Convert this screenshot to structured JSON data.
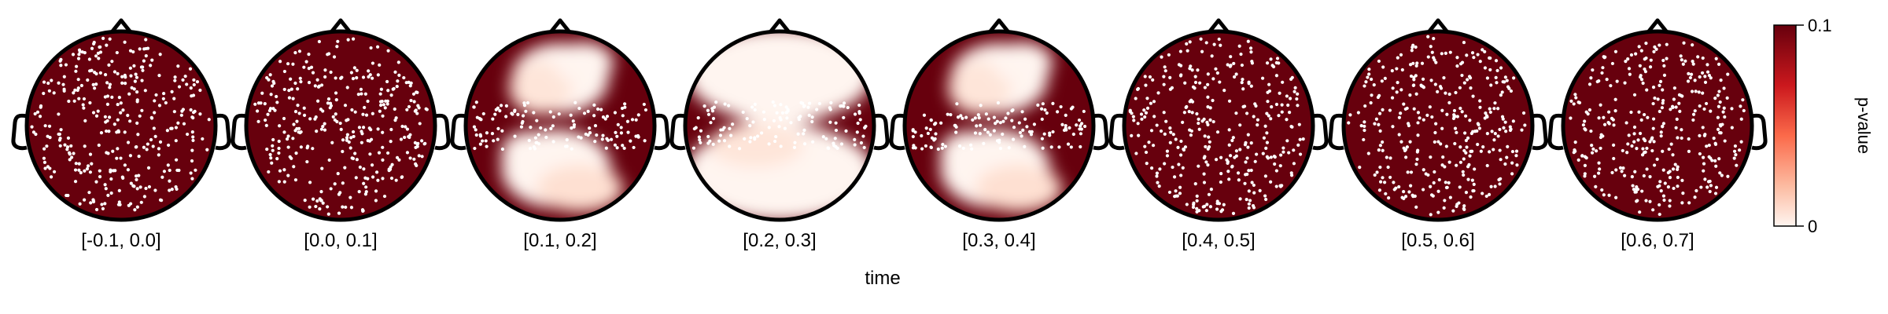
{
  "chart_data": {
    "type": "heatmap",
    "subtype": "topoplot-series",
    "xlabel": "time",
    "panels": [
      {
        "label": "[-0.1, 0.0]",
        "significant_regions": []
      },
      {
        "label": "[0.0, 0.1]",
        "significant_regions": []
      },
      {
        "label": "[0.1, 0.2]",
        "significant_regions": [
          {
            "location": "frontal",
            "p_value_min": 0.0
          },
          {
            "location": "posterior",
            "p_value_min": 0.0
          }
        ]
      },
      {
        "label": "[0.2, 0.3]",
        "significant_regions": [
          {
            "location": "frontal",
            "p_value_min": 0.0
          },
          {
            "location": "posterior",
            "p_value_min": 0.0
          }
        ]
      },
      {
        "label": "[0.3, 0.4]",
        "significant_regions": [
          {
            "location": "frontal",
            "p_value_min": 0.0
          },
          {
            "location": "posterior",
            "p_value_min": 0.0
          }
        ]
      },
      {
        "label": "[0.4, 0.5]",
        "significant_regions": []
      },
      {
        "label": "[0.5, 0.6]",
        "significant_regions": []
      },
      {
        "label": "[0.6, 0.7]",
        "significant_regions": []
      }
    ],
    "colorbar": {
      "label": "p-value",
      "range": [
        0,
        0.1
      ],
      "ticks": [
        "0",
        "0.1"
      ],
      "colormap": "Reds",
      "color_high": "#67000d",
      "color_low": "#fff5f0"
    },
    "sensor_color": "#ffffff",
    "outline_color": "#000000"
  }
}
